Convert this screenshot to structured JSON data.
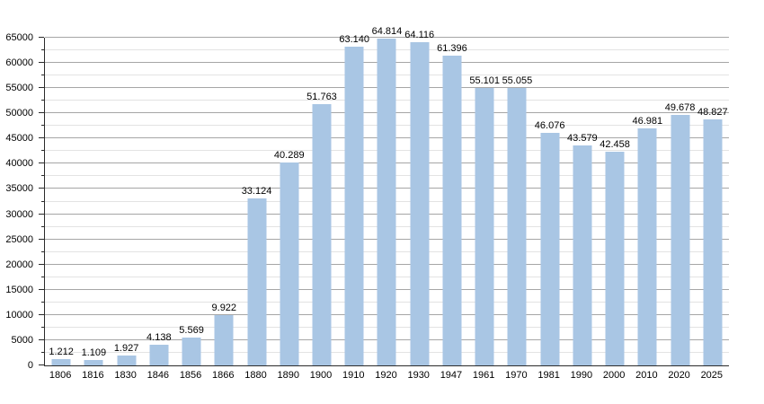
{
  "chart_data": {
    "type": "bar",
    "title": "",
    "xlabel": "",
    "ylabel": "",
    "categories": [
      "1806",
      "1816",
      "1830",
      "1846",
      "1856",
      "1866",
      "1880",
      "1890",
      "1900",
      "1910",
      "1920",
      "1930",
      "1947",
      "1961",
      "1970",
      "1981",
      "1990",
      "2000",
      "2010",
      "2020",
      "2025"
    ],
    "values": [
      1212,
      1109,
      1927,
      4138,
      5569,
      9922,
      33124,
      40289,
      51763,
      63140,
      64814,
      64116,
      61396,
      55101,
      55055,
      46076,
      43579,
      42458,
      46981,
      49678,
      48827
    ],
    "bar_labels": [
      "1.212",
      "1.109",
      "1.927",
      "4.138",
      "5.569",
      "9.922",
      "33.124",
      "40.289",
      "51.763",
      "63.140",
      "64.814",
      "64.116",
      "61.396",
      "55.101",
      "55.055",
      "46.076",
      "43.579",
      "42.458",
      "46.981",
      "49.678",
      "48.827"
    ],
    "ylim": [
      0,
      65000
    ],
    "ytick_step": 5000,
    "minor_tick_step": 2500,
    "ytick_labels": [
      "0",
      "5000",
      "10000",
      "15000",
      "20000",
      "25000",
      "30000",
      "35000",
      "40000",
      "45000",
      "50000",
      "55000",
      "60000",
      "65000"
    ],
    "grid": true,
    "legend": null,
    "colors": {
      "bar": "#a9c6e4",
      "major_grid": "#a6a6a6",
      "minor_grid": "#e3e3e3",
      "axis": "#2b2b2b",
      "text": "#000000"
    }
  }
}
